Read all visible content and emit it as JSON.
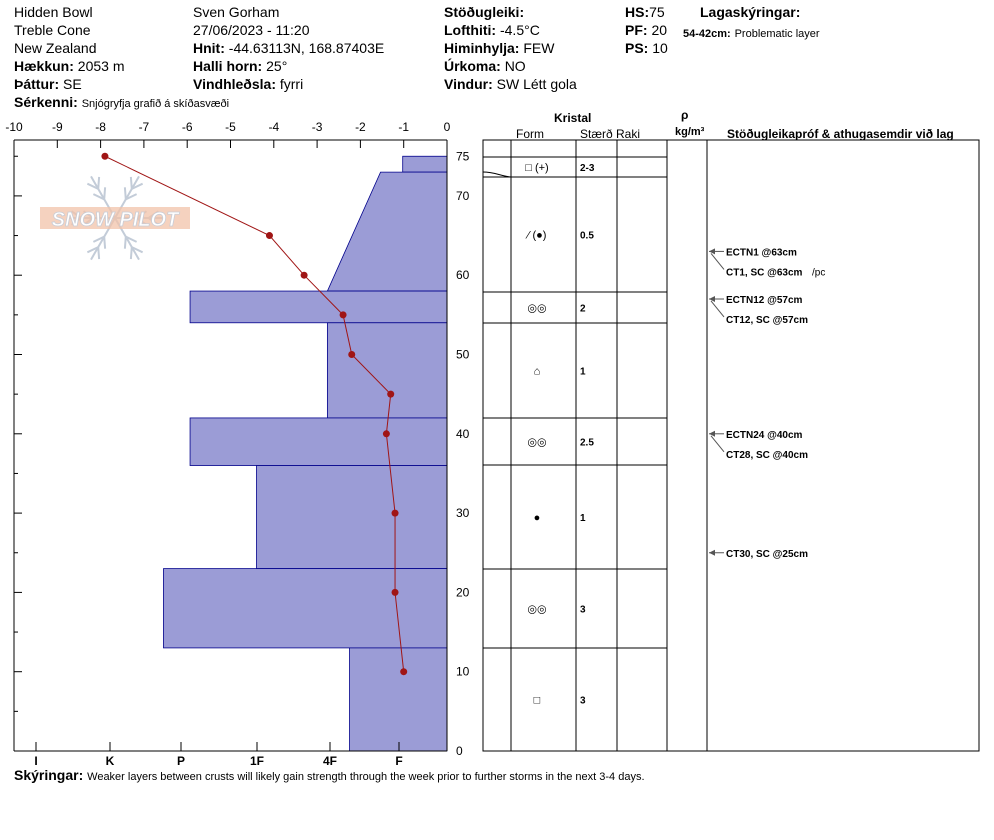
{
  "header": {
    "location": "Hidden Bowl",
    "range": "Treble Cone",
    "country": "New Zealand",
    "elevation_label": "Hækkun:",
    "elevation": "2053 m",
    "aspect_label": "Þáttur:",
    "aspect": "SE",
    "observer": "Sven Gorham",
    "datetime": "27/06/2023 - 11:20",
    "coords_label": "Hnit:",
    "coords": "-44.63113N, 168.87403E",
    "slope_label": "Halli horn:",
    "slope": "25°",
    "wind_loading_label": "Vindhleðsla:",
    "wind_loading": "fyrri",
    "stability_label": "Stöðugleiki:",
    "stability": "",
    "air_temp_label": "Lofthiti:",
    "air_temp": "-4.5°C",
    "sky_label": "Himinhylja:",
    "sky": "FEW",
    "precip_label": "Úrkoma:",
    "precip": "NO",
    "wind_label": "Vindur:",
    "wind": "SW Létt gola",
    "hs_label": "HS:",
    "hs": "75",
    "pf_label": "PF:",
    "pf": "20",
    "ps_label": "PS:",
    "ps": "10",
    "layer_notes_label": "Lagaskýringar:",
    "layer_note_range": "54-42cm:",
    "layer_note_text": "Problematic layer",
    "features_label": "Sérkenni:",
    "features": "Snjógryfja grafið á skíðasvæði"
  },
  "watermark": "SNOW PILOT",
  "columns": {
    "crystal": "Kristal",
    "form": "Form",
    "size": "Stærð",
    "moisture": "Raki",
    "rho": "ρ",
    "density_unit": "kg/m³",
    "tests": "Stöðugleikapróf & athugasemdir við lag"
  },
  "footer": {
    "label": "Skýringar:",
    "text": "Weaker layers between crusts will likely gain strength through the week prior to further storms in the next 3-4 days."
  },
  "chart_data": {
    "type": "profile",
    "temperature_axis": {
      "ticks": [
        "-10",
        "-9",
        "-8",
        "-7",
        "-6",
        "-5",
        "-4",
        "-3",
        "-2",
        "-1",
        "0"
      ],
      "range": [
        -10,
        0
      ]
    },
    "height_axis": {
      "ticks": [
        "75",
        "70",
        "60",
        "50",
        "40",
        "30",
        "20",
        "10",
        "0"
      ],
      "range": [
        0,
        75
      ]
    },
    "hardness_axis": {
      "ticks": [
        "I",
        "K",
        "P",
        "1F",
        "4F",
        "F"
      ]
    },
    "temperature_profile": [
      {
        "height": 75,
        "temp": -7.9
      },
      {
        "height": 65,
        "temp": -4.1
      },
      {
        "height": 60,
        "temp": -3.3
      },
      {
        "height": 55,
        "temp": -2.4
      },
      {
        "height": 50,
        "temp": -2.2
      },
      {
        "height": 45,
        "temp": -1.3
      },
      {
        "height": 40,
        "temp": -1.4
      },
      {
        "height": 30,
        "temp": -1.2
      },
      {
        "height": 20,
        "temp": -1.2
      },
      {
        "height": 10,
        "temp": -1.0
      }
    ],
    "hardness_profile": [
      {
        "top": 75,
        "bottom": 73,
        "hardness_index": 1.0
      },
      {
        "top": 73,
        "bottom": 58,
        "hardness_index_top": 1.5,
        "hardness_index_bottom": 2.7
      },
      {
        "top": 58,
        "bottom": 54,
        "hardness_index": 5.8
      },
      {
        "top": 54,
        "bottom": 42,
        "hardness_index": 2.7
      },
      {
        "top": 42,
        "bottom": 36,
        "hardness_index": 5.8
      },
      {
        "top": 36,
        "bottom": 23,
        "hardness_index": 4.3
      },
      {
        "top": 23,
        "bottom": 13,
        "hardness_index": 6.4
      },
      {
        "top": 13,
        "bottom": 0,
        "hardness_index": 2.2
      }
    ],
    "layers": [
      {
        "top": 75,
        "bottom": 73,
        "form": "□ (+)",
        "size": "2-3"
      },
      {
        "top": 73,
        "bottom": 58,
        "form": "⁄ (●)",
        "size": "0.5"
      },
      {
        "top": 58,
        "bottom": 54,
        "form": "◎◎",
        "size": "2"
      },
      {
        "top": 54,
        "bottom": 42,
        "form": "⌂",
        "size": "1"
      },
      {
        "top": 42,
        "bottom": 36,
        "form": "◎◎",
        "size": "2.5"
      },
      {
        "top": 36,
        "bottom": 23,
        "form": "●",
        "size": "1"
      },
      {
        "top": 23,
        "bottom": 13,
        "form": "◎◎",
        "size": "3"
      },
      {
        "top": 13,
        "bottom": 0,
        "form": "□",
        "size": "3"
      }
    ],
    "tests": [
      {
        "height": 63,
        "label": "ECTN1 @63cm",
        "sub": "CT1, SC @63cm",
        "note": "/pc"
      },
      {
        "height": 57,
        "label": "ECTN12 @57cm",
        "sub": "CT12, SC @57cm",
        "note": ""
      },
      {
        "height": 40,
        "label": "ECTN24 @40cm",
        "sub": "CT28, SC @40cm",
        "note": ""
      },
      {
        "height": 25,
        "label": "CT30, SC @25cm",
        "sub": "",
        "note": ""
      }
    ],
    "colors": {
      "hardness_fill": "#9b9cd6",
      "hardness_stroke": "#00008b",
      "temperature": "#a01515"
    }
  }
}
